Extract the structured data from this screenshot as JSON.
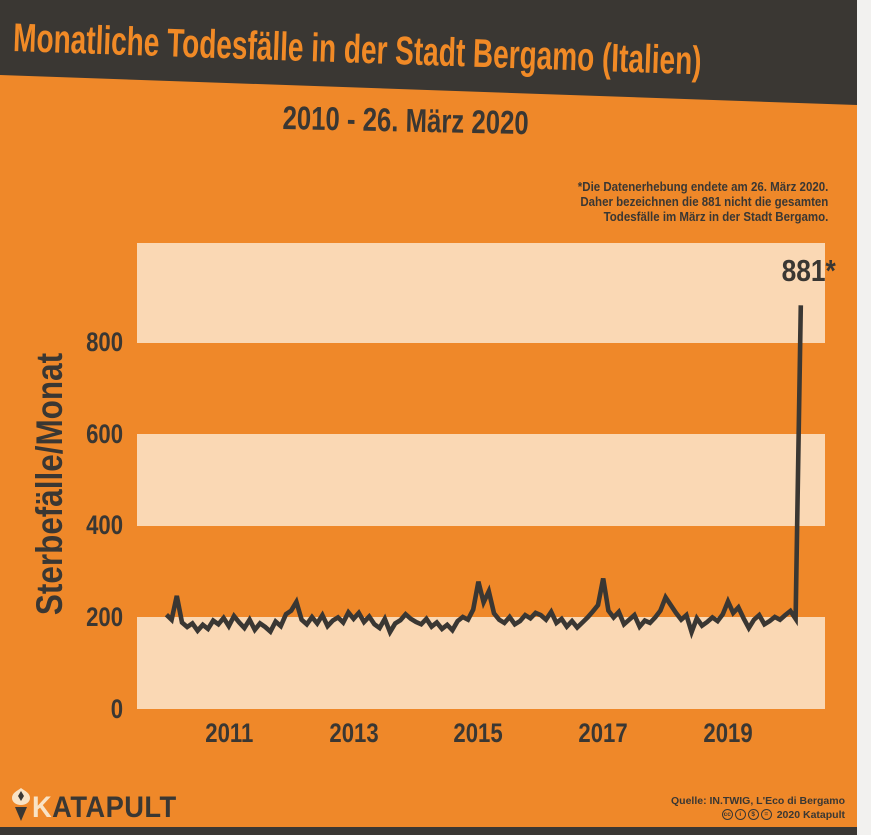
{
  "header": {
    "title": "Monatliche Todesfälle in der Stadt Bergamo (Italien)",
    "subtitle": "2010 - 26. März 2020"
  },
  "footnote": {
    "line1": "*Die Datenerhebung endete am 26. März 2020.",
    "line2": "Daher bezeichnen die 881 nicht die gesamten",
    "line3": "Todesfälle im März in der Stadt Bergamo."
  },
  "chart_data": {
    "type": "line",
    "title": "Monatliche Todesfälle in der Stadt Bergamo (Italien)",
    "subtitle": "2010 - 26. März 2020",
    "ylabel": "Sterbefälle/Monat",
    "xlabel": "",
    "x_start_month": "2010-01",
    "x_end_month": "2020-03",
    "x_ticks": [
      {
        "label": "2011",
        "month_index": 12
      },
      {
        "label": "2013",
        "month_index": 36
      },
      {
        "label": "2015",
        "month_index": 60
      },
      {
        "label": "2017",
        "month_index": 84
      },
      {
        "label": "2019",
        "month_index": 108
      }
    ],
    "y_ticks": [
      0,
      200,
      400,
      600,
      800
    ],
    "ylim": [
      0,
      1020
    ],
    "grid": "alternating horizontal bands every 200 units",
    "legend": "none",
    "peak_annotation": {
      "label": "881*",
      "value": 881,
      "month": "2020-03"
    },
    "series": [
      {
        "name": "Sterbefälle pro Monat",
        "values": [
          205,
          194,
          246,
          188,
          178,
          186,
          170,
          183,
          174,
          192,
          184,
          198,
          180,
          202,
          188,
          176,
          194,
          172,
          186,
          178,
          168,
          190,
          180,
          206,
          214,
          233,
          194,
          184,
          200,
          186,
          204,
          180,
          192,
          199,
          188,
          210,
          196,
          209,
          189,
          201,
          184,
          176,
          196,
          167,
          186,
          193,
          206,
          196,
          189,
          184,
          196,
          179,
          188,
          174,
          183,
          171,
          191,
          200,
          194,
          216,
          277,
          232,
          256,
          208,
          194,
          187,
          200,
          184,
          191,
          204,
          197,
          209,
          204,
          194,
          211,
          187,
          196,
          179,
          191,
          177,
          188,
          199,
          212,
          226,
          284,
          214,
          199,
          211,
          184,
          194,
          204,
          179,
          192,
          187,
          199,
          214,
          243,
          226,
          209,
          194,
          204,
          167,
          197,
          181,
          189,
          199,
          191,
          206,
          234,
          209,
          221,
          197,
          176,
          194,
          204,
          184,
          191,
          200,
          194,
          204,
          213,
          196,
          881
        ]
      }
    ]
  },
  "footer": {
    "brand_first_letter": "K",
    "brand_rest": "ATAPULT",
    "source_line1": "Quelle: IN.TWIG, L'Eco di Bergamo",
    "source_line2_year": "2020 Katapult",
    "cc_glyphs": [
      "cc",
      "i",
      "$",
      "="
    ],
    "cc_names": [
      "cc",
      "by",
      "nc",
      "nd"
    ]
  },
  "colors": {
    "background_orange": "#EF8829",
    "band_light": "#FAD8B4",
    "dark": "#3A3733",
    "title_orange": "#F18A26",
    "cream": "#F9E3C5",
    "edge_light": "#F2F1EF",
    "line": "#3A3733"
  }
}
